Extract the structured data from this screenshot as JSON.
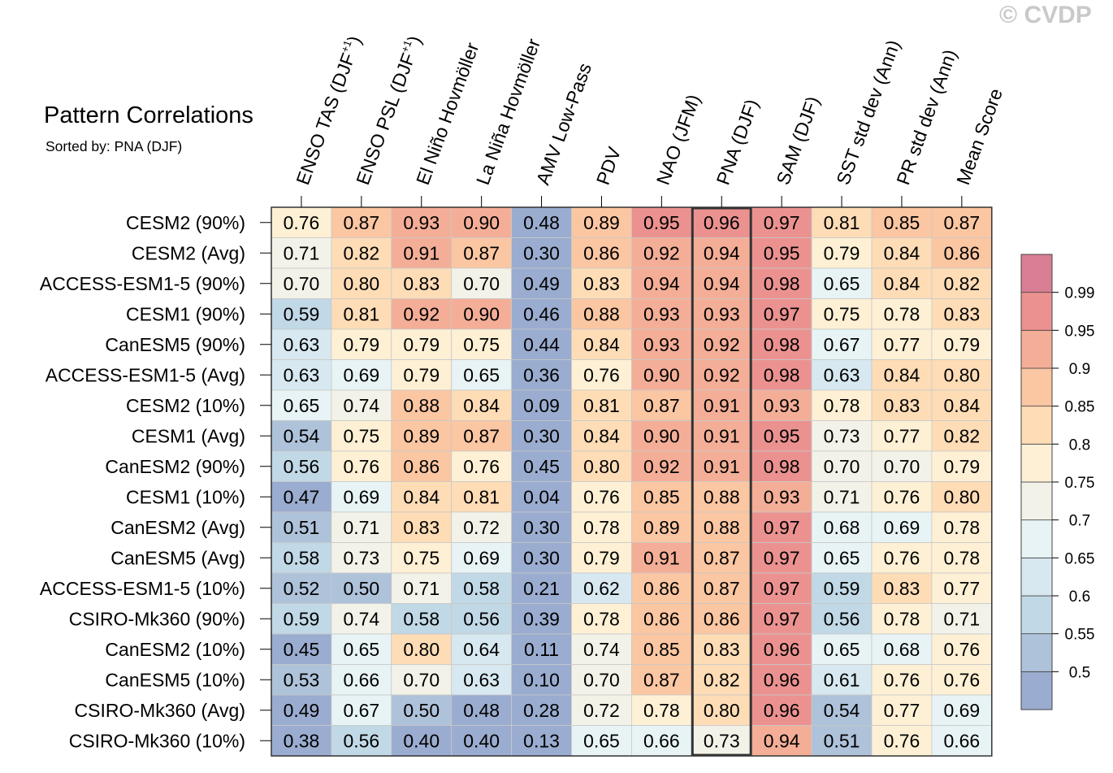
{
  "watermark": "© CVDP",
  "chart_data": {
    "type": "heatmap",
    "title": "Pattern Correlations",
    "subtitle": "Sorted by: PNA (DJF)",
    "columns": [
      {
        "pre": "ENSO TAS (DJF",
        "sup": "+1",
        "post": ")"
      },
      {
        "pre": "ENSO PSL (DJF",
        "sup": "+1",
        "post": ")"
      },
      {
        "pre": "El Niño Hovmöller"
      },
      {
        "pre": "La Niña Hovmöller"
      },
      {
        "pre": "AMV Low-Pass"
      },
      {
        "pre": "PDV"
      },
      {
        "pre": "NAO (JFM)"
      },
      {
        "pre": "PNA (DJF)"
      },
      {
        "pre": "SAM (DJF)"
      },
      {
        "pre": "SST std dev (Ann)"
      },
      {
        "pre": "PR std dev (Ann)"
      },
      {
        "pre": "Mean Score"
      }
    ],
    "highlighted_column": "PNA (DJF)",
    "rows": [
      "CESM2 (90%)",
      "CESM2 (Avg)",
      "ACCESS-ESM1-5 (90%)",
      "CESM1 (90%)",
      "CanESM5 (90%)",
      "ACCESS-ESM1-5 (Avg)",
      "CESM2 (10%)",
      "CESM1 (Avg)",
      "CanESM2 (90%)",
      "CESM1 (10%)",
      "CanESM2 (Avg)",
      "CanESM5 (Avg)",
      "ACCESS-ESM1-5 (10%)",
      "CSIRO-Mk360 (90%)",
      "CanESM2 (10%)",
      "CanESM5 (10%)",
      "CSIRO-Mk360 (Avg)",
      "CSIRO-Mk360 (10%)"
    ],
    "values": [
      [
        "0.76",
        "0.87",
        "0.93",
        "0.90",
        "0.48",
        "0.89",
        "0.95",
        "0.96",
        "0.97",
        "0.81",
        "0.85",
        "0.87"
      ],
      [
        "0.71",
        "0.82",
        "0.91",
        "0.87",
        "0.30",
        "0.86",
        "0.92",
        "0.94",
        "0.95",
        "0.79",
        "0.84",
        "0.86"
      ],
      [
        "0.70",
        "0.80",
        "0.83",
        "0.70",
        "0.49",
        "0.83",
        "0.94",
        "0.94",
        "0.98",
        "0.65",
        "0.84",
        "0.82"
      ],
      [
        "0.59",
        "0.81",
        "0.92",
        "0.90",
        "0.46",
        "0.88",
        "0.93",
        "0.93",
        "0.97",
        "0.75",
        "0.78",
        "0.83"
      ],
      [
        "0.63",
        "0.79",
        "0.79",
        "0.75",
        "0.44",
        "0.84",
        "0.93",
        "0.92",
        "0.98",
        "0.67",
        "0.77",
        "0.79"
      ],
      [
        "0.63",
        "0.69",
        "0.79",
        "0.65",
        "0.36",
        "0.76",
        "0.90",
        "0.92",
        "0.98",
        "0.63",
        "0.84",
        "0.80"
      ],
      [
        "0.65",
        "0.74",
        "0.88",
        "0.84",
        "0.09",
        "0.81",
        "0.87",
        "0.91",
        "0.93",
        "0.78",
        "0.83",
        "0.84"
      ],
      [
        "0.54",
        "0.75",
        "0.89",
        "0.87",
        "0.30",
        "0.84",
        "0.90",
        "0.91",
        "0.95",
        "0.73",
        "0.77",
        "0.82"
      ],
      [
        "0.56",
        "0.76",
        "0.86",
        "0.76",
        "0.45",
        "0.80",
        "0.92",
        "0.91",
        "0.98",
        "0.70",
        "0.70",
        "0.79"
      ],
      [
        "0.47",
        "0.69",
        "0.84",
        "0.81",
        "0.04",
        "0.76",
        "0.85",
        "0.88",
        "0.93",
        "0.71",
        "0.76",
        "0.80"
      ],
      [
        "0.51",
        "0.71",
        "0.83",
        "0.72",
        "0.30",
        "0.78",
        "0.89",
        "0.88",
        "0.97",
        "0.68",
        "0.69",
        "0.78"
      ],
      [
        "0.58",
        "0.73",
        "0.75",
        "0.69",
        "0.30",
        "0.79",
        "0.91",
        "0.87",
        "0.97",
        "0.65",
        "0.76",
        "0.78"
      ],
      [
        "0.52",
        "0.50",
        "0.71",
        "0.58",
        "0.21",
        "0.62",
        "0.86",
        "0.87",
        "0.97",
        "0.59",
        "0.83",
        "0.77"
      ],
      [
        "0.59",
        "0.74",
        "0.58",
        "0.56",
        "0.39",
        "0.78",
        "0.86",
        "0.86",
        "0.97",
        "0.56",
        "0.78",
        "0.71"
      ],
      [
        "0.45",
        "0.65",
        "0.80",
        "0.64",
        "0.11",
        "0.74",
        "0.85",
        "0.83",
        "0.96",
        "0.65",
        "0.68",
        "0.76"
      ],
      [
        "0.53",
        "0.66",
        "0.70",
        "0.63",
        "0.10",
        "0.70",
        "0.87",
        "0.82",
        "0.96",
        "0.61",
        "0.76",
        "0.76"
      ],
      [
        "0.49",
        "0.67",
        "0.50",
        "0.48",
        "0.28",
        "0.72",
        "0.78",
        "0.80",
        "0.96",
        "0.54",
        "0.77",
        "0.69"
      ],
      [
        "0.38",
        "0.56",
        "0.40",
        "0.40",
        "0.13",
        "0.65",
        "0.66",
        "0.73",
        "0.94",
        "0.51",
        "0.76",
        "0.66"
      ]
    ],
    "colorbar": {
      "levels": [
        0.5,
        0.55,
        0.6,
        0.65,
        0.7,
        0.75,
        0.8,
        0.85,
        0.9,
        0.95,
        0.99
      ],
      "labels": [
        "0.5",
        "0.55",
        "0.6",
        "0.65",
        "0.7",
        "0.75",
        "0.8",
        "0.85",
        "0.9",
        "0.95",
        "0.99"
      ],
      "colors": [
        "#9aaccf",
        "#aec2da",
        "#c1d8e6",
        "#d7e8f0",
        "#e7f3f4",
        "#f3f2e8",
        "#fdf0d4",
        "#fddcb6",
        "#fbc6a2",
        "#f4ae97",
        "#eb9290",
        "#d97e95"
      ]
    }
  }
}
